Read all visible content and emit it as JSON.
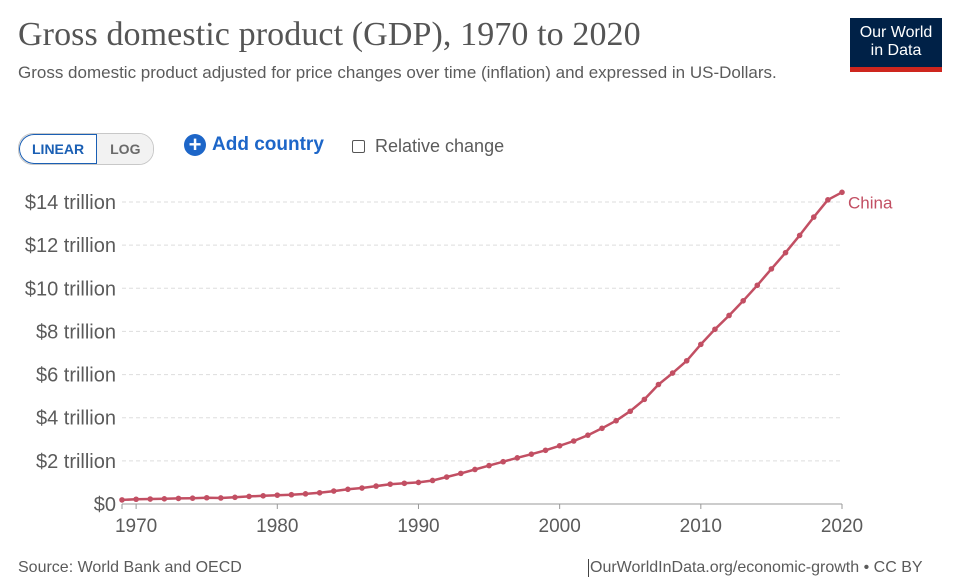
{
  "title": "Gross domestic product (GDP), 1970 to 2020",
  "subtitle": "Gross domestic product adjusted for price changes over time (inflation) and expressed in US-Dollars.",
  "logo": {
    "line1": "Our World",
    "line2": "in Data"
  },
  "controls": {
    "linear_label": "LINEAR",
    "log_label": "LOG",
    "add_country_label": "Add country",
    "relative_change_label": "Relative change"
  },
  "colors": {
    "series": "#c24f63",
    "grid": "#dddddd",
    "logo_bg": "#002147",
    "logo_accent": "#ce261e",
    "button_blue": "#1d66c8"
  },
  "chart_data": {
    "type": "line",
    "title": "Gross domestic product (GDP), 1970 to 2020",
    "xlim": [
      1969,
      2020
    ],
    "ylim": [
      0,
      14000000000000
    ],
    "x_ticks": [
      {
        "value": 1970,
        "label": "1970"
      },
      {
        "value": 1980,
        "label": "1980"
      },
      {
        "value": 1990,
        "label": "1990"
      },
      {
        "value": 2000,
        "label": "2000"
      },
      {
        "value": 2010,
        "label": "2010"
      },
      {
        "value": 2020,
        "label": "2020"
      }
    ],
    "y_ticks": [
      {
        "value": 0,
        "label": "$0"
      },
      {
        "value": 2000000000000,
        "label": "$2 trillion"
      },
      {
        "value": 4000000000000,
        "label": "$4 trillion"
      },
      {
        "value": 6000000000000,
        "label": "$6 trillion"
      },
      {
        "value": 8000000000000,
        "label": "$8 trillion"
      },
      {
        "value": 10000000000000,
        "label": "$10 trillion"
      },
      {
        "value": 12000000000000,
        "label": "$12 trillion"
      },
      {
        "value": 14000000000000,
        "label": "$14 trillion"
      }
    ],
    "grid": true,
    "x": [
      1969,
      1970,
      1971,
      1972,
      1973,
      1974,
      1975,
      1976,
      1977,
      1978,
      1979,
      1980,
      1981,
      1982,
      1983,
      1984,
      1985,
      1986,
      1987,
      1988,
      1989,
      1990,
      1991,
      1992,
      1993,
      1994,
      1995,
      1996,
      1997,
      1998,
      1999,
      2000,
      2001,
      2002,
      2003,
      2004,
      2005,
      2006,
      2007,
      2008,
      2009,
      2010,
      2011,
      2012,
      2013,
      2014,
      2015,
      2016,
      2017,
      2018,
      2019,
      2020
    ],
    "series": [
      {
        "name": "China",
        "values": [
          190000000000.0,
          220000000000.0,
          230000000000.0,
          240000000000.0,
          260000000000.0,
          270000000000.0,
          290000000000.0,
          280000000000.0,
          310000000000.0,
          350000000000.0,
          380000000000.0,
          410000000000.0,
          430000000000.0,
          470000000000.0,
          520000000000.0,
          600000000000.0,
          680000000000.0,
          740000000000.0,
          830000000000.0,
          920000000000.0,
          960000000000.0,
          1000000000000.0,
          1090000000000.0,
          1250000000000.0,
          1420000000000.0,
          1600000000000.0,
          1780000000000.0,
          1960000000000.0,
          2140000000000.0,
          2310000000000.0,
          2490000000000.0,
          2700000000000.0,
          2920000000000.0,
          3190000000000.0,
          3510000000000.0,
          3860000000000.0,
          4300000000000.0,
          4850000000000.0,
          5540000000000.0,
          6070000000000.0,
          6640000000000.0,
          7400000000000.0,
          8100000000000.0,
          8740000000000.0,
          9420000000000.0,
          10140000000000.0,
          10900000000000.0,
          11650000000000.0,
          12450000000000.0,
          13300000000000.0,
          14100000000000.0,
          14450000000000.0
        ]
      }
    ]
  },
  "footer": {
    "source": "Source: World Bank and OECD",
    "link": "OurWorldInData.org/economic-growth • CC BY"
  }
}
